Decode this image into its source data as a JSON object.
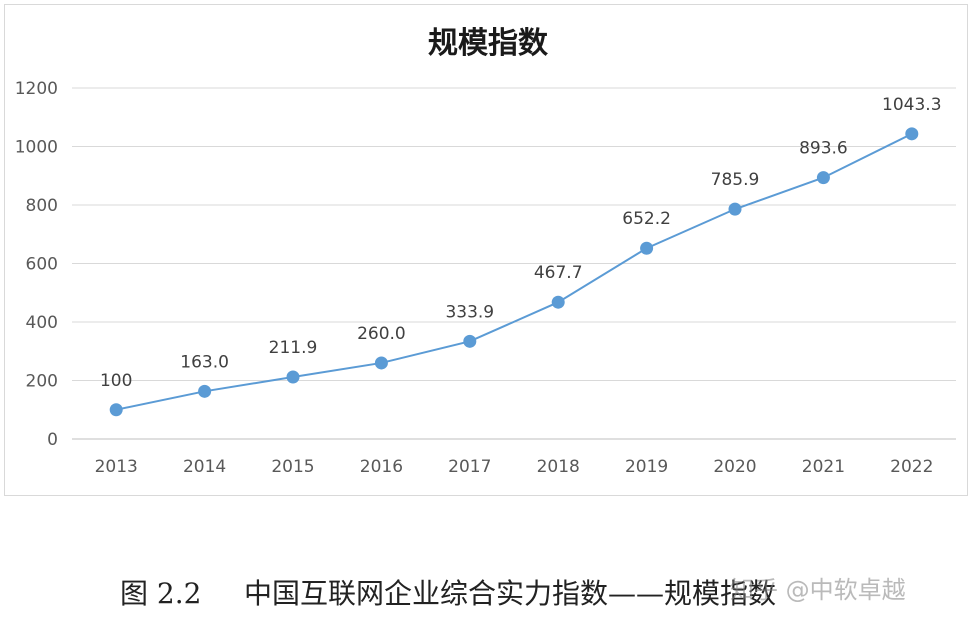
{
  "chart_data": {
    "type": "line",
    "title": "规模指数",
    "categories": [
      "2013",
      "2014",
      "2015",
      "2016",
      "2017",
      "2018",
      "2019",
      "2020",
      "2021",
      "2022"
    ],
    "values": [
      100,
      163.0,
      211.9,
      260.0,
      333.9,
      467.7,
      652.2,
      785.9,
      893.6,
      1043.3
    ],
    "data_labels": [
      "100",
      "163.0",
      "211.9",
      "260.0",
      "333.9",
      "467.7",
      "652.2",
      "785.9",
      "893.6",
      "1043.3"
    ],
    "ylim": [
      0,
      1200
    ],
    "yticks": [
      0,
      200,
      400,
      600,
      800,
      1000,
      1200
    ],
    "grid": true,
    "legend": "none",
    "color": "#5b9bd5"
  },
  "caption": {
    "number": "图 2.2",
    "text": "中国互联网企业综合实力指数——规模指数"
  },
  "watermark": "知乎 @中软卓越"
}
